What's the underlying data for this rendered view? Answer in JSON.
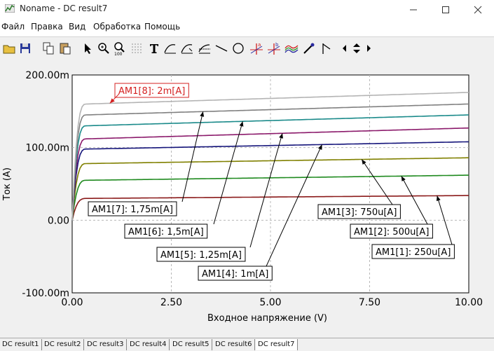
{
  "window": {
    "title": "Noname - DC result7",
    "icon": "chart-window-icon",
    "controls": [
      "minimize-icon",
      "maximize-icon",
      "close-icon"
    ]
  },
  "menu": [
    {
      "label": "Файл"
    },
    {
      "label": "Правка"
    },
    {
      "label": "Вид"
    },
    {
      "label": "Обработка"
    },
    {
      "label": "Помощь"
    }
  ],
  "toolbar": {
    "buttons": [
      "open-icon",
      "save-icon",
      "copy-icon",
      "paste-icon",
      "pointer-icon",
      "zoom-in-icon",
      "zoom-100-icon",
      "grid-icon",
      "text-tool-icon",
      "edit-curve-icon",
      "curve-add-icon",
      "curve-arrow-icon",
      "line-tool-icon",
      "circle-tool-icon",
      "cursor-a-icon",
      "cursor-b-icon",
      "signal-icon",
      "probe-icon",
      "flag-icon",
      "scroll-left-icon",
      "scroll-updown-icon",
      "scroll-right-icon"
    ]
  },
  "tabs": [
    {
      "label": "DC result1"
    },
    {
      "label": "DC result2"
    },
    {
      "label": "DC result3"
    },
    {
      "label": "DC result4"
    },
    {
      "label": "DC result5"
    },
    {
      "label": "DC result6"
    },
    {
      "label": "DC result7",
      "active": true
    }
  ],
  "chart_data": {
    "type": "line",
    "xlabel": "Входное напряжение (V)",
    "ylabel": "Ток (A)",
    "xlim": [
      0,
      10
    ],
    "ylim": [
      -0.1,
      0.2
    ],
    "xticks": [
      "0.00",
      "2.50",
      "5.00",
      "7.50",
      "10.00"
    ],
    "yticks": [
      "200.00m",
      "100.00m",
      "0.00",
      "-100.00m"
    ],
    "grid": true,
    "series": [
      {
        "name": "AM1[1]: 250u[A]",
        "color": "#8b1a1a",
        "plateau": 0.03,
        "end": 0.034
      },
      {
        "name": "AM1[2]: 500u[A]",
        "color": "#1f8a1f",
        "plateau": 0.055,
        "end": 0.062
      },
      {
        "name": "AM1[3]: 750u[A]",
        "color": "#808000",
        "plateau": 0.078,
        "end": 0.086
      },
      {
        "name": "AM1[4]: 1m[A]",
        "color": "#14147a",
        "plateau": 0.098,
        "end": 0.108
      },
      {
        "name": "AM1[5]: 1,25m[A]",
        "color": "#8b1a6b",
        "plateau": 0.112,
        "end": 0.127
      },
      {
        "name": "AM1[6]: 1,5m[A]",
        "color": "#1a8a8a",
        "plateau": 0.13,
        "end": 0.145
      },
      {
        "name": "AM1[7]: 1,75m[A]",
        "color": "#808080",
        "plateau": 0.145,
        "end": 0.16
      },
      {
        "name": "AM1[8]: 2m[A]",
        "color": "#b4b4b4",
        "plateau": 0.16,
        "end": 0.176
      }
    ],
    "annotations": [
      {
        "text": "AM1[8]: 2m[A]",
        "color": "#d42020",
        "target_x": 0.95,
        "target_series": 7
      },
      {
        "text": "AM1[7]: 1,75m[A]",
        "color": "#000000",
        "target_x": 3.3,
        "target_series": 6
      },
      {
        "text": "AM1[6]: 1,5m[A]",
        "color": "#000000",
        "target_x": 4.3,
        "target_series": 5
      },
      {
        "text": "AM1[5]: 1,25m[A]",
        "color": "#000000",
        "target_x": 5.3,
        "target_series": 4
      },
      {
        "text": "AM1[4]: 1m[A]",
        "color": "#000000",
        "target_x": 6.3,
        "target_series": 3
      },
      {
        "text": "AM1[3]: 750u[A]",
        "color": "#000000",
        "target_x": 7.3,
        "target_series": 2
      },
      {
        "text": "AM1[2]: 500u[A]",
        "color": "#000000",
        "target_x": 8.3,
        "target_series": 1
      },
      {
        "text": "AM1[1]: 250u[A]",
        "color": "#000000",
        "target_x": 9.2,
        "target_series": 0
      }
    ]
  }
}
